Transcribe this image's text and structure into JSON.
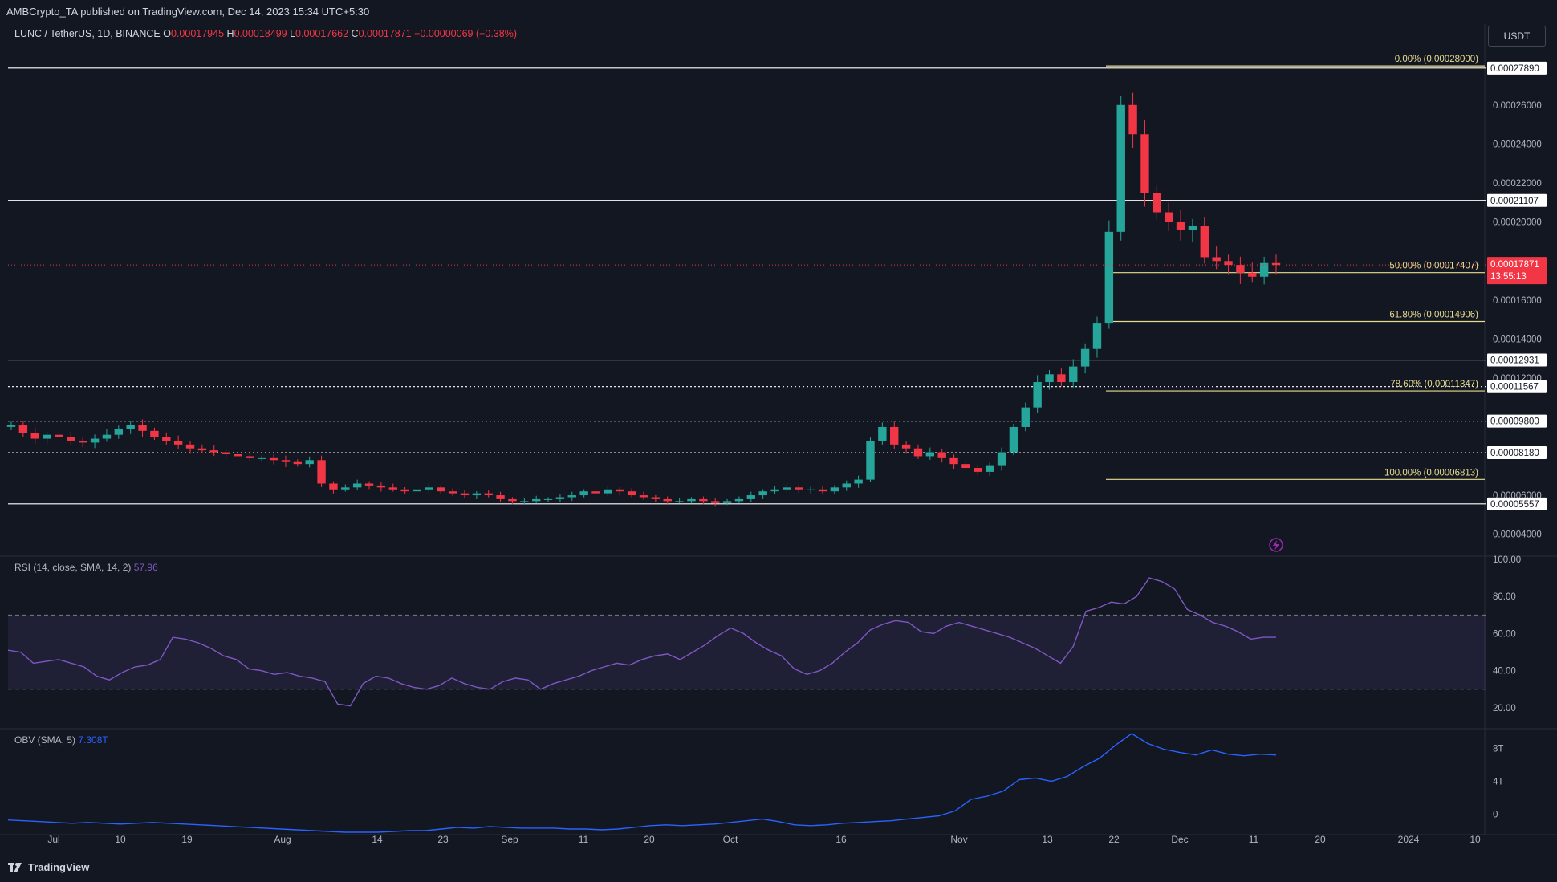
{
  "header": {
    "published": "AMBCrypto_TA published on TradingView.com, Dec 14, 2023 15:34 UTC+5:30"
  },
  "symbol": {
    "title": "LUNC / TetherUS, 1D, BINANCE",
    "open_label": "O",
    "open": "0.00017945",
    "high_label": "H",
    "high": "0.00018499",
    "low_label": "L",
    "low": "0.00017662",
    "close_label": "C",
    "close": "0.00017871",
    "change": "−0.00000069 (−0.38%)"
  },
  "currency_button": "USDT",
  "price_badge": {
    "price": "0.00017871",
    "countdown": "13:55:13",
    "color": "#f23645"
  },
  "colors": {
    "background": "#131722",
    "up": "#26a69a",
    "down": "#f23645",
    "fib": "#e8dc90",
    "rsi": "#7e57c2",
    "obv": "#2962ff",
    "level_line": "#ffffff"
  },
  "footer": {
    "brand": "TradingView"
  },
  "icons": {
    "events": "lightning-icon",
    "brand": "tradingview-logo"
  },
  "chart_data": [
    {
      "type": "candlestick",
      "title": "LUNC / TetherUS, 1D, BINANCE",
      "ylim": [
        3e-05,
        0.000285
      ],
      "y_ticks": [
        "0.00026000",
        "0.00024000",
        "0.00022000",
        "0.00020000",
        "0.00016000",
        "0.00014000",
        "0.00012000",
        "0.00006000",
        "0.00004000"
      ],
      "x_ticks": [
        "Jul",
        "10",
        "19",
        "Aug",
        "14",
        "23",
        "Sep",
        "11",
        "20",
        "Oct",
        "16",
        "Nov",
        "13",
        "22",
        "Dec",
        "11",
        "20",
        "2024",
        "10"
      ],
      "horizontal_levels": [
        {
          "price": 0.0002789,
          "label": "0.00027890",
          "style": "solid"
        },
        {
          "price": 0.00021107,
          "label": "0.00021107",
          "style": "solid"
        },
        {
          "price": 0.00012931,
          "label": "0.00012931",
          "style": "solid"
        },
        {
          "price": 0.00011567,
          "label": "0.00011567",
          "style": "dotted"
        },
        {
          "price": 9.8e-05,
          "label": "0.00009800",
          "style": "dotted"
        },
        {
          "price": 8.18e-05,
          "label": "0.00008180",
          "style": "dotted"
        },
        {
          "price": 5.557e-05,
          "label": "0.00005557",
          "style": "solid"
        }
      ],
      "fib_levels": [
        {
          "ratio": "0.00%",
          "price": 0.00028,
          "label": "0.00% (0.00028000)"
        },
        {
          "ratio": "50.00%",
          "price": 0.00017407,
          "label": "50.00% (0.00017407)"
        },
        {
          "ratio": "61.80%",
          "price": 0.00014906,
          "label": "61.80% (0.00014906)"
        },
        {
          "ratio": "78.60%",
          "price": 0.00011347,
          "label": "78.60% (0.00011347)"
        },
        {
          "ratio": "100.00%",
          "price": 6.813e-05,
          "label": "100.00% (0.00006813)"
        }
      ],
      "close_path": [
        [
          9.6e-05,
          9.2e-05,
          8.9e-05,
          9.1e-05,
          9e-05,
          8.8e-05,
          8.7e-05,
          8.9e-05,
          9.1e-05,
          9.4e-05,
          9.6e-05,
          9.3e-05,
          9e-05,
          8.8e-05,
          8.6e-05,
          8.4e-05,
          8.3e-05,
          8.2e-05,
          8.1e-05,
          8e-05,
          7.9e-05,
          7.9e-05,
          7.8e-05,
          7.7e-05,
          7.6e-05,
          7.8e-05,
          6.6e-05,
          6.3e-05,
          6.4e-05,
          6.6e-05,
          6.5e-05,
          6.4e-05,
          6.3e-05,
          6.2e-05,
          6.3e-05,
          6.4e-05,
          6.2e-05,
          6.1e-05,
          6e-05,
          6.1e-05,
          6e-05,
          5.8e-05,
          5.7e-05,
          5.7e-05,
          5.8e-05,
          5.8e-05,
          5.9e-05,
          6e-05,
          6.2e-05,
          6.1e-05,
          6.3e-05,
          6.2e-05,
          6e-05,
          5.9e-05,
          5.8e-05,
          5.7e-05,
          5.7e-05,
          5.8e-05,
          5.7e-05,
          5.6e-05,
          5.7e-05,
          5.8e-05,
          6e-05,
          6.2e-05,
          6.3e-05,
          6.4e-05,
          6.3e-05,
          6.3e-05,
          6.2e-05,
          6.4e-05,
          6.6e-05,
          6.8e-05,
          8.8e-05,
          9.5e-05,
          8.6e-05,
          8.4e-05,
          8e-05,
          8.2e-05,
          7.9e-05,
          7.6e-05,
          7.4e-05,
          7.2e-05,
          7.5e-05,
          8.2e-05,
          9.5e-05,
          0.000105,
          0.000118,
          0.000122,
          0.000118,
          0.000126,
          0.000135,
          0.000148,
          0.000195,
          0.00026,
          0.000245,
          0.000215,
          0.000205,
          0.0002,
          0.000196,
          0.000198,
          0.000182,
          0.00018,
          0.000178,
          0.000174,
          0.000172,
          0.000179,
          0.000178
        ]
      ]
    },
    {
      "type": "line",
      "title": "RSI (14, close, SMA, 14, 2)",
      "last_value": "57.96",
      "ylim": [
        10,
        100
      ],
      "y_ticks": [
        "100.00",
        "80.00",
        "60.00",
        "40.00",
        "20.00"
      ],
      "bands": [
        30,
        50,
        70
      ],
      "values": [
        51,
        50,
        44,
        45,
        46,
        44,
        42,
        37,
        35,
        39,
        42,
        43,
        46,
        58,
        57,
        55,
        52,
        48,
        46,
        41,
        40,
        38,
        39,
        37,
        36,
        34,
        22,
        21,
        33,
        37,
        36,
        33,
        31,
        30,
        32,
        36,
        33,
        31,
        30,
        34,
        36,
        35,
        30,
        33,
        35,
        37,
        40,
        42,
        44,
        43,
        46,
        48,
        49,
        46,
        50,
        54,
        59,
        63,
        60,
        55,
        51,
        48,
        41,
        38,
        40,
        44,
        50,
        55,
        62,
        65,
        67,
        66,
        61,
        60,
        64,
        66,
        64,
        62,
        60,
        58,
        55,
        52,
        48,
        44,
        53,
        72,
        74,
        77,
        76,
        80,
        90,
        88,
        84,
        73,
        70,
        66,
        64,
        61,
        57,
        58,
        58
      ]
    },
    {
      "type": "line",
      "title": "OBV (SMA, 5)",
      "last_value": "7.308T",
      "ylim": [
        -2,
        10
      ],
      "y_ticks": [
        "8T",
        "4T",
        "0"
      ],
      "values": [
        -0.7,
        -0.8,
        -0.9,
        -1.0,
        -1.1,
        -1.0,
        -1.1,
        -1.2,
        -1.1,
        -1.0,
        -1.1,
        -1.2,
        -1.3,
        -1.4,
        -1.5,
        -1.6,
        -1.7,
        -1.8,
        -1.9,
        -2.0,
        -2.1,
        -2.2,
        -2.2,
        -2.2,
        -2.1,
        -2.0,
        -2.0,
        -1.8,
        -1.6,
        -1.7,
        -1.5,
        -1.6,
        -1.7,
        -1.7,
        -1.7,
        -1.8,
        -1.8,
        -1.9,
        -1.8,
        -1.6,
        -1.4,
        -1.3,
        -1.4,
        -1.3,
        -1.2,
        -1.0,
        -0.8,
        -0.6,
        -0.9,
        -1.3,
        -1.4,
        -1.3,
        -1.1,
        -1.0,
        -0.9,
        -0.8,
        -0.6,
        -0.4,
        -0.2,
        0.4,
        1.8,
        2.2,
        2.8,
        4.2,
        4.4,
        4.0,
        4.6,
        5.8,
        6.8,
        8.4,
        9.8,
        8.6,
        7.9,
        7.5,
        7.2,
        7.8,
        7.3,
        7.1,
        7.3,
        7.2
      ]
    }
  ]
}
